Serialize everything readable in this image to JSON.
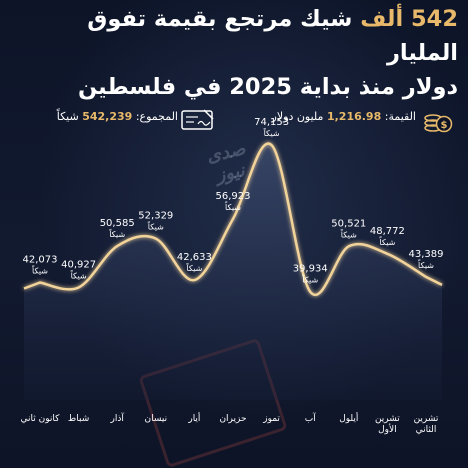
{
  "headline": {
    "line1_gold": "542 ألف",
    "line1_rest": "شيك مرتجع بقيمة تفوق المليار",
    "line2": "دولار منذ بداية 2025 في فلسطين"
  },
  "info": {
    "value_label": "القيمة:",
    "value_amount": "1,216.98",
    "value_unit": "مليون دولار",
    "total_label": "المجموع:",
    "total_amount": "542,239",
    "total_unit": "شيكاً"
  },
  "watermark": "صدى نيوز",
  "icons": {
    "coins": "coins-dollar-icon",
    "cheque": "cheque-icon"
  },
  "colors": {
    "gold": "#e8b96a",
    "curve": "#f2d39a",
    "background": "#0c1326"
  },
  "chart_data": {
    "type": "line",
    "unit_label": "شيكاً",
    "categories": [
      "كانون ثاني",
      "شباط",
      "آذار",
      "نيسان",
      "أيار",
      "حزيران",
      "تموز",
      "آب",
      "أيلول",
      "تشرين الأول",
      "تشرين الثاني"
    ],
    "values": [
      42073,
      40927,
      50585,
      52329,
      42633,
      56923,
      74153,
      39934,
      50521,
      48772,
      43389
    ],
    "value_labels": [
      "42,073",
      "40,927",
      "50,585",
      "52,329",
      "42,633",
      "56,923",
      "74,153",
      "39,934",
      "50,521",
      "48,772",
      "43,389"
    ],
    "ylim": [
      10000,
      80000
    ],
    "grid": false,
    "legend": "none"
  }
}
